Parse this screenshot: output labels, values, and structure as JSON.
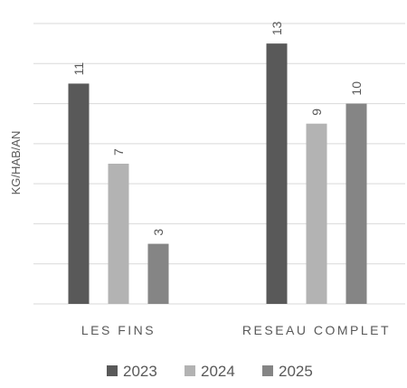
{
  "chart_data": {
    "type": "bar",
    "categories": [
      "LES FINS",
      "RESEAU COMPLET"
    ],
    "series": [
      {
        "name": "2023",
        "values": [
          11,
          13
        ],
        "color": "#595959"
      },
      {
        "name": "2024",
        "values": [
          7,
          9
        ],
        "color": "#b3b3b3"
      },
      {
        "name": "2025",
        "values": [
          3,
          10
        ],
        "color": "#858585"
      }
    ],
    "data_labels": [
      [
        "11",
        "7",
        "3"
      ],
      [
        "13",
        "9",
        "10"
      ]
    ],
    "ylabel": "KG/HAB/AN",
    "ylim": [
      0,
      14
    ],
    "y_gridline_step": 2,
    "y_tick_labels_shown": false,
    "grid": true,
    "legend_position": "bottom",
    "label_orientation": "vertical",
    "gridline_color": "#d9d9d9",
    "text_color": "#595959"
  }
}
